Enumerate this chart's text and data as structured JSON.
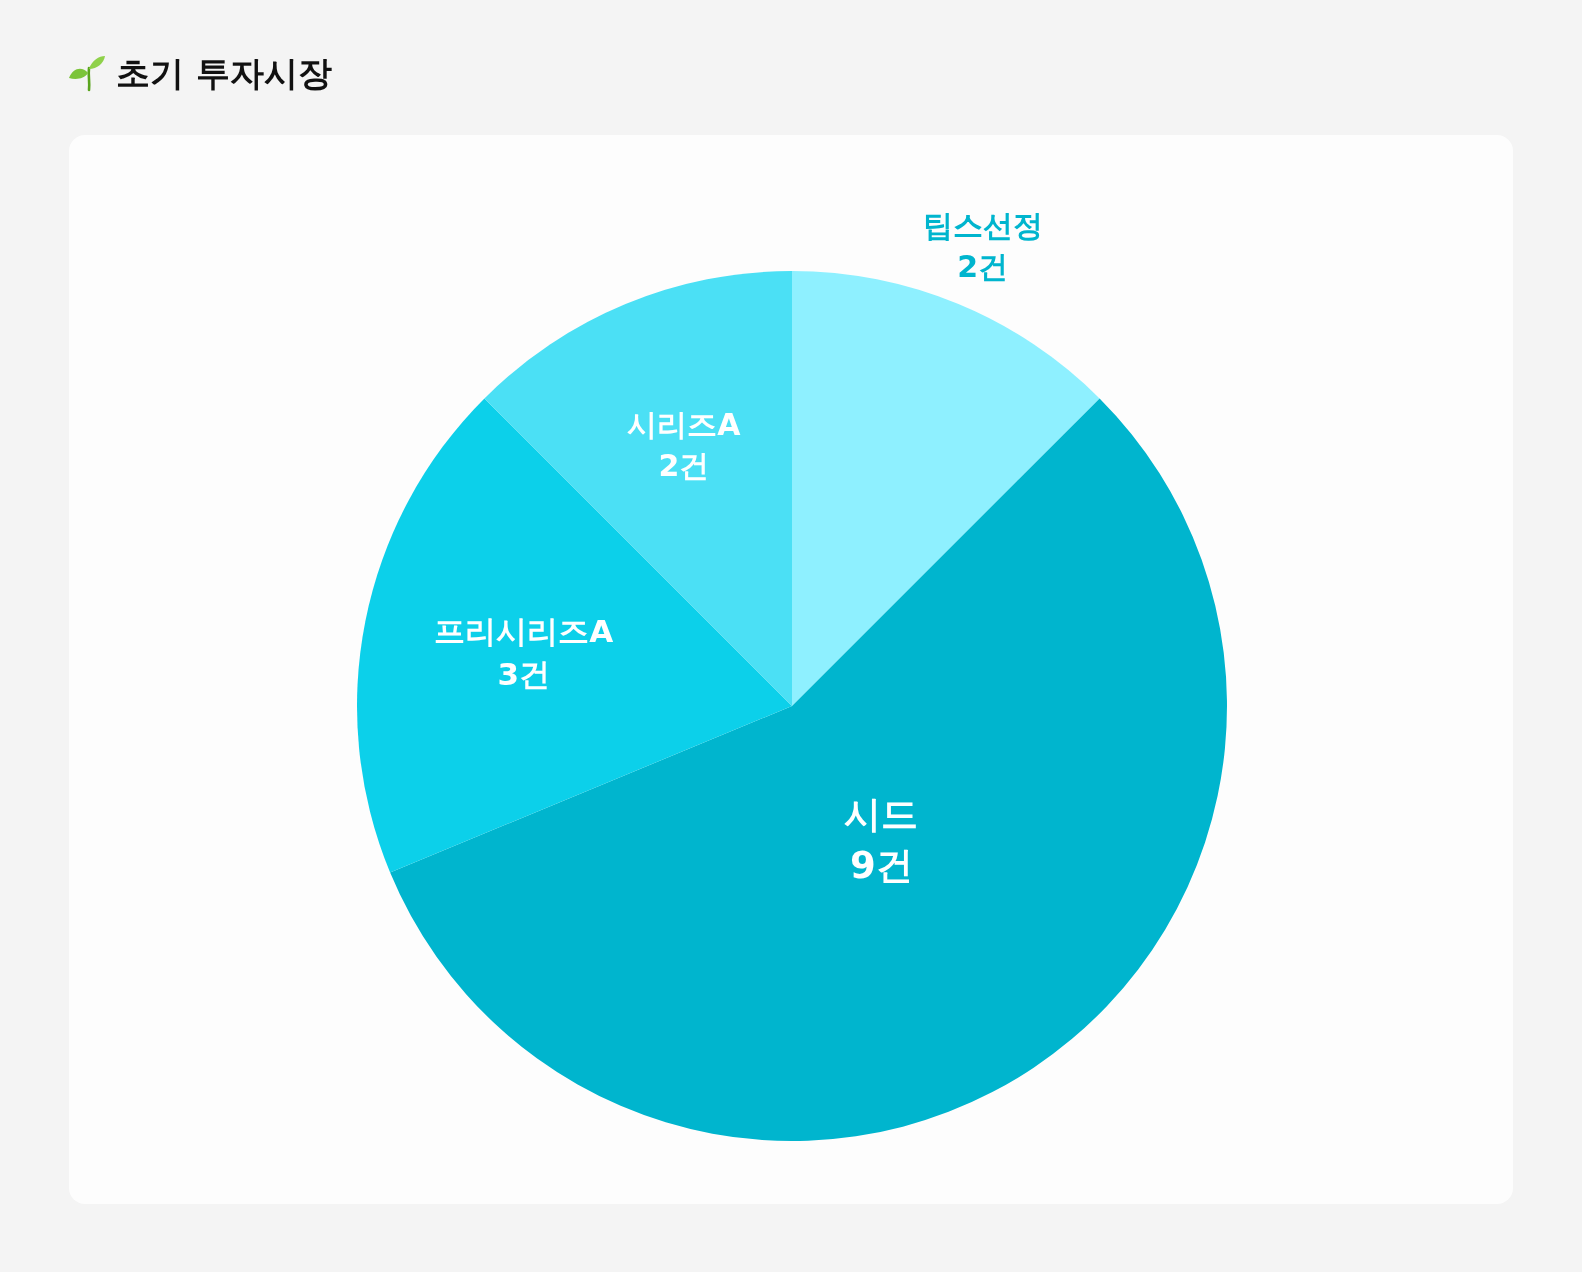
{
  "chart_data": {
    "type": "pie",
    "title": "초기 투자시장",
    "categories": [
      "팁스선정",
      "시드",
      "프리시리즈A",
      "시리즈A"
    ],
    "values": [
      2,
      9,
      3,
      2
    ],
    "value_labels": [
      "2건",
      "9건",
      "3건",
      "2건"
    ],
    "colors": [
      "#8ef0ff",
      "#00b5ce",
      "#0cd0ea",
      "#4be0f5"
    ],
    "legend": false
  }
}
